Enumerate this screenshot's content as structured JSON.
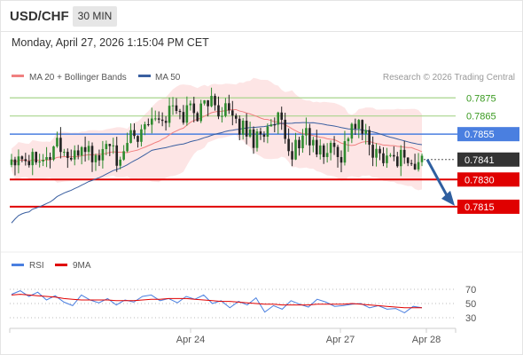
{
  "header": {
    "pair": "USD/CHF",
    "timeframe": "30 MIN"
  },
  "timestamp": "Monday, April 27, 2026 1:15:04 PM CET",
  "legend": {
    "ma20": {
      "label": "MA 20 + Bollinger Bands",
      "color": "#f08080"
    },
    "ma50": {
      "label": "MA 50",
      "color": "#3a5fa0"
    },
    "credit": "Research © 2026 Trading Central"
  },
  "rsi_legend": {
    "rsi": "RSI",
    "ma9": "9MA"
  },
  "colors": {
    "resistance": "#a8d48c",
    "pivot": "#4a7fe0",
    "support": "#e00000",
    "current": "#333333",
    "bull": "#2e8b2e",
    "bear": "#222222",
    "arrow": "#2f5fa0"
  },
  "chart_data": [
    {
      "type": "candlestick",
      "title": "USD/CHF 30 MIN",
      "x_ticks": [
        "Apr 24",
        "Apr 27",
        "Apr 28"
      ],
      "ylim": [
        0.7791,
        0.7881
      ],
      "levels": [
        {
          "label": "0.7875",
          "value": 0.7875,
          "kind": "resistance"
        },
        {
          "label": "0.7865",
          "value": 0.7865,
          "kind": "resistance"
        },
        {
          "label": "0.7855",
          "value": 0.7855,
          "kind": "pivot"
        },
        {
          "label": "0.7830",
          "value": 0.783,
          "kind": "support"
        },
        {
          "label": "0.7815",
          "value": 0.7815,
          "kind": "support"
        }
      ],
      "current_price": {
        "label": "0.7841",
        "value": 0.7841
      },
      "forecast_arrow": {
        "from": 0.7841,
        "to": 0.7815,
        "direction": "down"
      },
      "close_path": [
        0.7842,
        0.7845,
        0.7841,
        0.7846,
        0.784,
        0.7852,
        0.7844,
        0.784,
        0.7851,
        0.7842,
        0.7843,
        0.7852,
        0.7832,
        0.7855,
        0.7849,
        0.7864,
        0.7867,
        0.7862,
        0.787,
        0.7864,
        0.7871,
        0.7866,
        0.7875,
        0.7868,
        0.7871,
        0.7858,
        0.786,
        0.7852,
        0.7858,
        0.7856,
        0.7863,
        0.7844,
        0.7848,
        0.7857,
        0.7846,
        0.7844,
        0.7849,
        0.7843,
        0.786,
        0.7859,
        0.785,
        0.7843,
        0.7845,
        0.7841,
        0.7845,
        0.7835,
        0.7841
      ]
    },
    {
      "type": "line",
      "title": "RSI",
      "yticks": [
        70,
        50,
        30
      ],
      "ylim": [
        20,
        80
      ],
      "series": [
        {
          "name": "RSI",
          "color": "#4a7fe0",
          "values": [
            63,
            68,
            60,
            66,
            55,
            61,
            52,
            47,
            62,
            55,
            51,
            57,
            48,
            55,
            52,
            60,
            62,
            54,
            57,
            51,
            60,
            56,
            62,
            50,
            54,
            44,
            53,
            48,
            58,
            38,
            47,
            42,
            54,
            49,
            45,
            56,
            52,
            46,
            47,
            49,
            50,
            44,
            47,
            42,
            43,
            37,
            46,
            44
          ]
        },
        {
          "name": "9MA",
          "color": "#e00000",
          "values": [
            62,
            63,
            62,
            61,
            60,
            59,
            57,
            56,
            55,
            55,
            55,
            55,
            54,
            54,
            54,
            55,
            56,
            56,
            57,
            57,
            57,
            56,
            55,
            54,
            53,
            53,
            52,
            51,
            50,
            49,
            49,
            48,
            48,
            48,
            48,
            49,
            49,
            49,
            49,
            50,
            49,
            48,
            47,
            46,
            45,
            44,
            44,
            44
          ]
        }
      ]
    }
  ]
}
